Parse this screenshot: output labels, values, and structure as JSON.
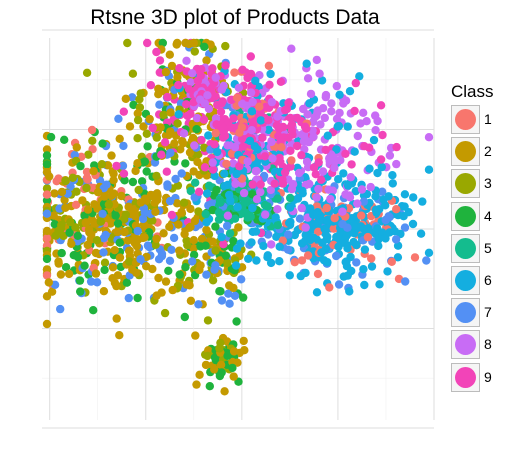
{
  "chart_data": {
    "type": "scatter",
    "title": "Rtsne 3D plot of Products Data",
    "xlabel": "",
    "ylabel": "",
    "grid": true,
    "legend_placement": "right",
    "legend": {
      "title": "Class",
      "entries": [
        {
          "label": "1",
          "color": "#F8766D"
        },
        {
          "label": "2",
          "color": "#C49A00"
        },
        {
          "label": "3",
          "color": "#99A800"
        },
        {
          "label": "4",
          "color": "#1FB33D"
        },
        {
          "label": "5",
          "color": "#14BC8E"
        },
        {
          "label": "6",
          "color": "#14AEE0"
        },
        {
          "label": "7",
          "color": "#5390F4"
        },
        {
          "label": "8",
          "color": "#C86CF5"
        },
        {
          "label": "9",
          "color": "#F244B8"
        }
      ]
    },
    "clusters": [
      {
        "class": "2",
        "mix": [
          "2",
          "2",
          "2",
          "3",
          "4",
          "7",
          "1"
        ],
        "cx": -38,
        "cy": 5,
        "sx": 11,
        "sy": 9,
        "n": 300
      },
      {
        "class": "2",
        "mix": [
          "2",
          "2",
          "2",
          "3",
          "4",
          "7"
        ],
        "cx": -30,
        "cy": -1,
        "sx": 10,
        "sy": 9,
        "n": 260
      },
      {
        "class": "2",
        "mix": [
          "2",
          "2",
          "3",
          "4",
          "7",
          "9"
        ],
        "cx": -15,
        "cy": 28,
        "sx": 7,
        "sy": 11,
        "n": 260
      },
      {
        "class": "2",
        "mix": [
          "2",
          "2",
          "3",
          "4",
          "7"
        ],
        "cx": -8,
        "cy": -8,
        "sx": 5,
        "sy": 5,
        "n": 90
      },
      {
        "class": "2",
        "mix": [
          "2",
          "2",
          "3",
          "4"
        ],
        "cx": -5,
        "cy": -33,
        "sx": 3,
        "sy": 3,
        "n": 60
      },
      {
        "class": "6",
        "mix": [
          "6",
          "6",
          "6",
          "6",
          "7",
          "1"
        ],
        "cx": 24,
        "cy": 0,
        "sx": 10,
        "sy": 6,
        "n": 380
      },
      {
        "class": "6",
        "mix": [
          "6",
          "6",
          "7",
          "5",
          "9"
        ],
        "cx": 2,
        "cy": 18,
        "sx": 4,
        "sy": 10,
        "n": 120
      },
      {
        "class": "5",
        "mix": [
          "5",
          "5",
          "5",
          "6",
          "7",
          "4"
        ],
        "cx": 0,
        "cy": 7,
        "sx": 5,
        "sy": 3,
        "n": 170
      },
      {
        "class": "8",
        "mix": [
          "8",
          "8",
          "8",
          "9",
          "6"
        ],
        "cx": 16,
        "cy": 20,
        "sx": 11,
        "sy": 9,
        "n": 260
      },
      {
        "class": "9",
        "mix": [
          "9",
          "9",
          "9",
          "8",
          "6",
          "1"
        ],
        "cx": 2,
        "cy": 27,
        "sx": 6,
        "sy": 7,
        "n": 220
      },
      {
        "class": "9",
        "mix": [
          "9",
          "9",
          "8"
        ],
        "cx": -10,
        "cy": 36,
        "sx": 3,
        "sy": 3,
        "n": 50
      }
    ]
  }
}
